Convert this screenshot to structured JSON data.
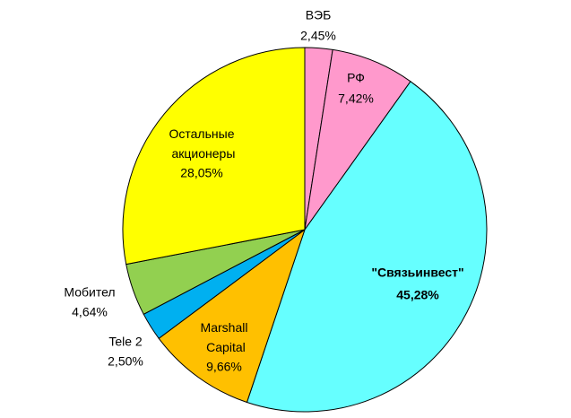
{
  "chart_data": {
    "type": "pie",
    "categories": [
      "ВЭБ",
      "РФ",
      "\"Связьинвест\"",
      "Marshall Capital",
      "Tele 2",
      "Мобител",
      "Остальные акционеры"
    ],
    "values": [
      2.45,
      7.42,
      45.28,
      9.66,
      2.5,
      4.64,
      28.05
    ],
    "value_labels": [
      "2,45%",
      "7,42%",
      "45,28%",
      "9,66%",
      "2,50%",
      "4,64%",
      "28,05%"
    ],
    "colors": [
      "#ff99cc",
      "#ff99cc",
      "#66ffff",
      "#ffc000",
      "#00b0f0",
      "#92d050",
      "#ffff00"
    ]
  }
}
